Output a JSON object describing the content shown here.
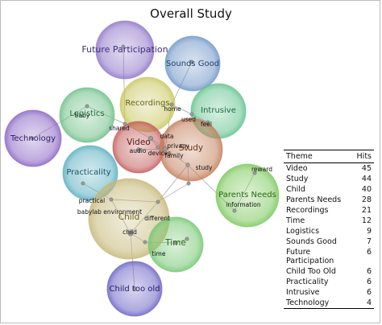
{
  "title": "Overall Study",
  "themes": [
    {
      "name": "Future Participation",
      "color": "#8e74c8",
      "text": "#3b2d78"
    },
    {
      "name": "Sounds Good",
      "color": "#6f95c8",
      "text": "#23406e"
    },
    {
      "name": "Recordings",
      "color": "#c8c65c",
      "text": "#68641a"
    },
    {
      "name": "Logistics",
      "color": "#6cbf86",
      "text": "#216b3a"
    },
    {
      "name": "Intrusive",
      "color": "#60c28c",
      "text": "#1b6a40"
    },
    {
      "name": "Technology",
      "color": "#8a64c4",
      "text": "#2f1b66"
    },
    {
      "name": "Video",
      "color": "#c25a5a",
      "text": "#5a1616"
    },
    {
      "name": "Study",
      "color": "#c47e5a",
      "text": "#6a3214"
    },
    {
      "name": "Practicality",
      "color": "#58aec0",
      "text": "#1a5566"
    },
    {
      "name": "Parents Needs",
      "color": "#7cc85c",
      "text": "#2d6a14"
    },
    {
      "name": "Child",
      "color": "#c6b878",
      "text": "#6a5e14"
    },
    {
      "name": "Time",
      "color": "#72c66e",
      "text": "#26661e"
    },
    {
      "name": "Child too old",
      "color": "#6a62c4",
      "text": "#201a66"
    }
  ],
  "words": [
    "baby",
    "shared",
    "home",
    "used",
    "feel",
    "data",
    "privacy",
    "family",
    "audio",
    "devices",
    "study",
    "reward",
    "information",
    "practical",
    "babylab environment",
    "different",
    "child",
    "time"
  ],
  "legend": {
    "col_theme": "Theme",
    "col_hits": "Hits",
    "rows": [
      {
        "theme": "Video",
        "hits": "45"
      },
      {
        "theme": "Study",
        "hits": "44"
      },
      {
        "theme": "Child",
        "hits": "40"
      },
      {
        "theme": "Parents Needs",
        "hits": "28"
      },
      {
        "theme": "Recordings",
        "hits": "21"
      },
      {
        "theme": "Time",
        "hits": "12"
      },
      {
        "theme": "Logistics",
        "hits": "9"
      },
      {
        "theme": "Sounds Good",
        "hits": "7"
      },
      {
        "theme": "Future Participation",
        "hits": "6"
      },
      {
        "theme": "Child Too Old",
        "hits": "6"
      },
      {
        "theme": "Practicality",
        "hits": "6"
      },
      {
        "theme": "Intrusive",
        "hits": "6"
      },
      {
        "theme": "Technology",
        "hits": "4"
      }
    ]
  }
}
